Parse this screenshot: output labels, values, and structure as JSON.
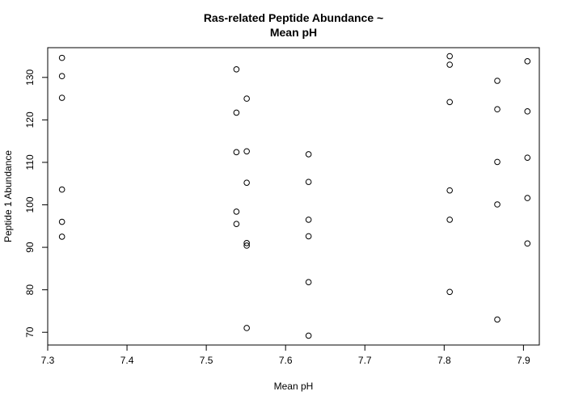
{
  "chart_data": {
    "type": "scatter",
    "title_lines": [
      "Ras-related Peptide Abundance ~",
      "Mean pH"
    ],
    "xlabel": "Mean pH",
    "ylabel": "Peptide 1 Abundance",
    "xlim": [
      7.3,
      7.92
    ],
    "ylim": [
      67,
      137
    ],
    "xticks": [
      7.3,
      7.4,
      7.5,
      7.6,
      7.7,
      7.8,
      7.9
    ],
    "xtick_labels": [
      "7.3",
      "7.4",
      "7.5",
      "7.6",
      "7.7",
      "7.8",
      "7.9"
    ],
    "yticks": [
      70,
      80,
      90,
      100,
      110,
      120,
      130
    ],
    "ytick_labels": [
      "70",
      "80",
      "90",
      "100",
      "110",
      "120",
      "130"
    ],
    "grid": false,
    "points": [
      {
        "x": 7.318,
        "y": 134.6
      },
      {
        "x": 7.318,
        "y": 130.3
      },
      {
        "x": 7.318,
        "y": 125.2
      },
      {
        "x": 7.318,
        "y": 103.6
      },
      {
        "x": 7.318,
        "y": 96.0
      },
      {
        "x": 7.318,
        "y": 92.5
      },
      {
        "x": 7.538,
        "y": 131.9
      },
      {
        "x": 7.538,
        "y": 121.7
      },
      {
        "x": 7.538,
        "y": 112.4
      },
      {
        "x": 7.538,
        "y": 98.4
      },
      {
        "x": 7.538,
        "y": 95.5
      },
      {
        "x": 7.551,
        "y": 125.0
      },
      {
        "x": 7.551,
        "y": 112.6
      },
      {
        "x": 7.551,
        "y": 105.2
      },
      {
        "x": 7.551,
        "y": 91.0
      },
      {
        "x": 7.551,
        "y": 90.4
      },
      {
        "x": 7.551,
        "y": 71.0
      },
      {
        "x": 7.629,
        "y": 111.9
      },
      {
        "x": 7.629,
        "y": 105.4
      },
      {
        "x": 7.629,
        "y": 96.5
      },
      {
        "x": 7.629,
        "y": 92.6
      },
      {
        "x": 7.629,
        "y": 81.8
      },
      {
        "x": 7.629,
        "y": 69.2
      },
      {
        "x": 7.807,
        "y": 135.0
      },
      {
        "x": 7.807,
        "y": 133.0
      },
      {
        "x": 7.807,
        "y": 124.2
      },
      {
        "x": 7.807,
        "y": 103.4
      },
      {
        "x": 7.807,
        "y": 96.5
      },
      {
        "x": 7.807,
        "y": 79.5
      },
      {
        "x": 7.867,
        "y": 129.2
      },
      {
        "x": 7.867,
        "y": 122.5
      },
      {
        "x": 7.867,
        "y": 110.1
      },
      {
        "x": 7.867,
        "y": 100.1
      },
      {
        "x": 7.867,
        "y": 73.0
      },
      {
        "x": 7.905,
        "y": 133.8
      },
      {
        "x": 7.905,
        "y": 122.0
      },
      {
        "x": 7.905,
        "y": 111.1
      },
      {
        "x": 7.905,
        "y": 101.6
      },
      {
        "x": 7.905,
        "y": 90.9
      }
    ]
  }
}
